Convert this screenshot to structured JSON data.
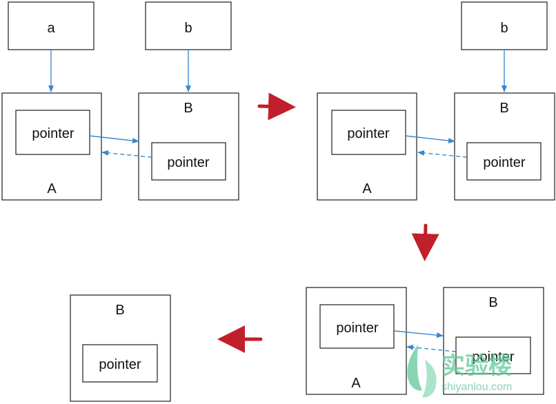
{
  "labels": {
    "var_a": "a",
    "var_b": "b",
    "obj_a": "A",
    "obj_b": "B",
    "pointer": "pointer"
  },
  "colors": {
    "link": "#3a88cf",
    "step_arrow": "#c0202b",
    "watermark": "#5fc79a"
  },
  "watermark": {
    "title": "实验楼",
    "url": "shiyanlou.com"
  }
}
